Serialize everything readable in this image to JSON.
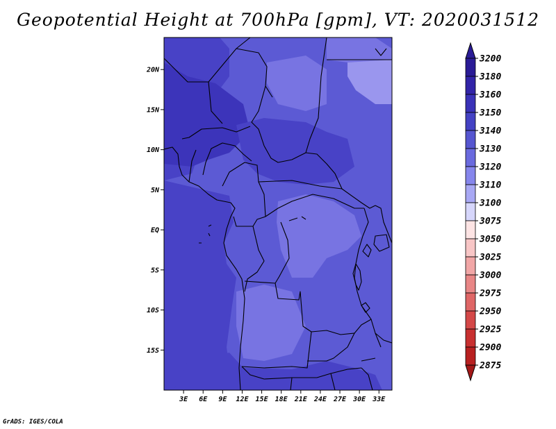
{
  "title": "Geopotential Height at 700hPa [gpm], VT: 2020031512",
  "credit": "GrADS: IGES/COLA",
  "map": {
    "lon_range": [
      0,
      35
    ],
    "lat_range": [
      -20,
      24
    ],
    "lat_ticks": [
      {
        "lat": 20,
        "label": "20N"
      },
      {
        "lat": 15,
        "label": "15N"
      },
      {
        "lat": 10,
        "label": "10N"
      },
      {
        "lat": 5,
        "label": "5N"
      },
      {
        "lat": 0,
        "label": "EQ"
      },
      {
        "lat": -5,
        "label": "5S"
      },
      {
        "lat": -10,
        "label": "10S"
      },
      {
        "lat": -15,
        "label": "15S"
      }
    ],
    "lon_ticks": [
      {
        "lon": 3,
        "label": "3E"
      },
      {
        "lon": 6,
        "label": "6E"
      },
      {
        "lon": 9,
        "label": "9E"
      },
      {
        "lon": 12,
        "label": "12E"
      },
      {
        "lon": 15,
        "label": "15E"
      },
      {
        "lon": 18,
        "label": "18E"
      },
      {
        "lon": 21,
        "label": "21E"
      },
      {
        "lon": 24,
        "label": "24E"
      },
      {
        "lon": 27,
        "label": "27E"
      },
      {
        "lon": 30,
        "label": "30E"
      },
      {
        "lon": 33,
        "label": "33E"
      }
    ]
  },
  "colorbar": {
    "levels": [
      {
        "label": "3200",
        "color": "#2a1b96"
      },
      {
        "label": "3180",
        "color": "#3224a8"
      },
      {
        "label": "3160",
        "color": "#3a32b8"
      },
      {
        "label": "3150",
        "color": "#4442c4"
      },
      {
        "label": "3140",
        "color": "#5656d0"
      },
      {
        "label": "3130",
        "color": "#6a6ade"
      },
      {
        "label": "3120",
        "color": "#8686ec"
      },
      {
        "label": "3110",
        "color": "#a8a8f4"
      },
      {
        "label": "3100",
        "color": "#d6d6fb"
      },
      {
        "label": "3075",
        "color": "#fde4e4"
      },
      {
        "label": "3050",
        "color": "#f8c6c6"
      },
      {
        "label": "3025",
        "color": "#f1a6a6"
      },
      {
        "label": "3000",
        "color": "#e88686"
      },
      {
        "label": "2975",
        "color": "#df6666"
      },
      {
        "label": "2950",
        "color": "#d44848"
      },
      {
        "label": "2925",
        "color": "#c83030"
      },
      {
        "label": "2900",
        "color": "#b82020"
      },
      {
        "label": "2875",
        "color": "#a31818"
      }
    ]
  },
  "field_colors": {
    "deep": "#3c34ba",
    "mid": "#4842c6",
    "light": "#5c5ad4",
    "pale": "#7874e2",
    "palest": "#9a96ee",
    "outline": "#000000"
  }
}
